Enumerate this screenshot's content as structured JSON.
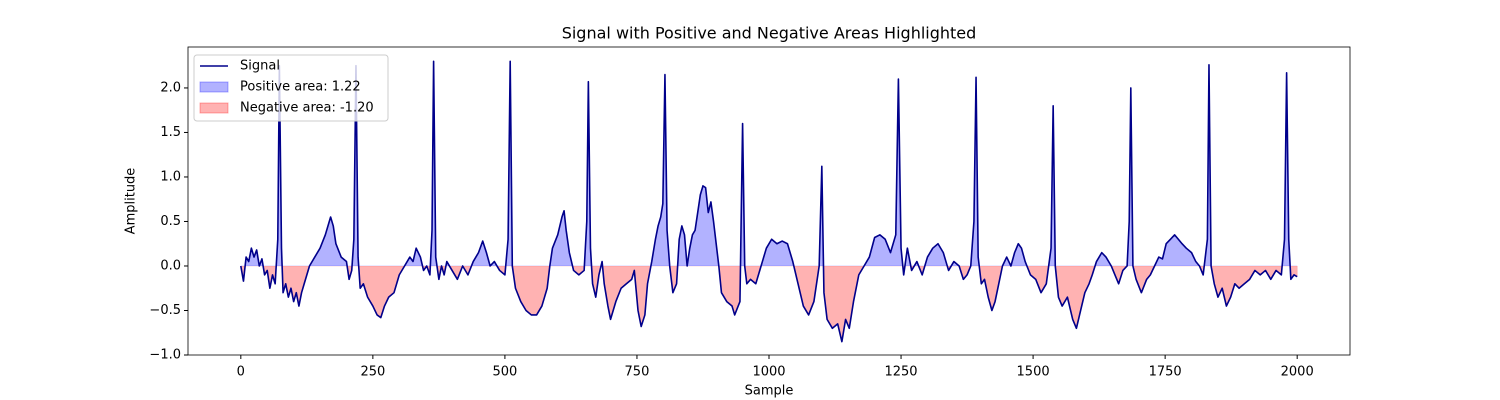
{
  "chart_data": {
    "type": "line",
    "title": "Signal with Positive and Negative Areas Highlighted",
    "x_label": "Sample",
    "y_label": "Amplitude",
    "xlim": [
      -100,
      2100
    ],
    "ylim": [
      -1,
      2.46
    ],
    "xticks": [
      0,
      250,
      500,
      750,
      1000,
      1250,
      1500,
      1750,
      2000
    ],
    "yticks": [
      {
        "value": -1,
        "label": "−1.0"
      },
      {
        "value": -0.5,
        "label": "−0.5"
      },
      {
        "value": 0,
        "label": "0.0"
      },
      0.5,
      {
        "value": 1,
        "label": "1.0"
      },
      1.5,
      {
        "value": 2,
        "label": "2.0"
      }
    ],
    "legend": "upper left",
    "series": [
      {
        "name": "Signal",
        "color": "#00008b",
        "x": [
          0,
          5,
          10,
          15,
          20,
          25,
          30,
          35,
          40,
          45,
          50,
          55,
          60,
          65,
          70,
          73,
          77,
          80,
          85,
          90,
          95,
          100,
          105,
          110,
          115,
          120,
          130,
          140,
          150,
          160,
          170,
          175,
          180,
          190,
          200,
          205,
          210,
          214,
          218,
          222,
          226,
          232,
          240,
          250,
          258,
          265,
          272,
          280,
          290,
          300,
          310,
          320,
          326,
          332,
          340,
          346,
          352,
          358,
          362,
          365,
          369,
          375,
          380,
          385,
          390,
          400,
          410,
          420,
          430,
          440,
          450,
          458,
          465,
          472,
          480,
          490,
          500,
          506,
          510,
          514,
          520,
          530,
          540,
          550,
          560,
          570,
          580,
          585,
          590,
          600,
          608,
          612,
          616,
          622,
          630,
          640,
          650,
          655,
          658,
          662,
          666,
          672,
          678,
          684,
          688,
          695,
          700,
          710,
          720,
          730,
          740,
          745,
          752,
          758,
          765,
          770,
          778,
          785,
          790,
          795,
          799,
          803,
          807,
          812,
          818,
          825,
          830,
          835,
          840,
          845,
          850,
          855,
          860,
          865,
          870,
          875,
          880,
          885,
          890,
          895,
          900,
          905,
          910,
          920,
          930,
          935,
          945,
          950,
          954,
          958,
          965,
          975,
          985,
          995,
          1005,
          1015,
          1025,
          1035,
          1045,
          1055,
          1065,
          1075,
          1085,
          1095,
          1100,
          1104,
          1110,
          1120,
          1130,
          1138,
          1145,
          1152,
          1160,
          1170,
          1180,
          1190,
          1200,
          1210,
          1220,
          1230,
          1240,
          1245,
          1250,
          1255,
          1262,
          1270,
          1280,
          1290,
          1300,
          1310,
          1320,
          1330,
          1340,
          1350,
          1360,
          1368,
          1375,
          1382,
          1388,
          1392,
          1396,
          1402,
          1408,
          1415,
          1422,
          1428,
          1435,
          1442,
          1450,
          1458,
          1465,
          1472,
          1478,
          1485,
          1495,
          1505,
          1515,
          1525,
          1534,
          1538,
          1542,
          1548,
          1555,
          1565,
          1575,
          1582,
          1590,
          1598,
          1606,
          1612,
          1620,
          1630,
          1638,
          1648,
          1655,
          1662,
          1670,
          1678,
          1682,
          1685,
          1689,
          1695,
          1705,
          1715,
          1722,
          1730,
          1738,
          1745,
          1752,
          1760,
          1768,
          1775,
          1782,
          1790,
          1800,
          1808,
          1815,
          1822,
          1830,
          1833,
          1837,
          1843,
          1850,
          1858,
          1866,
          1874,
          1882,
          1890,
          1900,
          1910,
          1920,
          1930,
          1940,
          1950,
          1960,
          1970,
          1976,
          1980,
          1984,
          1988,
          1994,
          2000
        ],
        "values": [
          0,
          -0.17,
          0.1,
          0.05,
          0.2,
          0.1,
          0.18,
          0,
          0.08,
          -0.1,
          -0.05,
          -0.25,
          -0.1,
          -0.2,
          0.3,
          2.25,
          0.2,
          -0.3,
          -0.2,
          -0.35,
          -0.25,
          -0.4,
          -0.3,
          -0.45,
          -0.3,
          -0.2,
          0,
          0.1,
          0.2,
          0.35,
          0.55,
          0.45,
          0.25,
          0.1,
          0.05,
          -0.15,
          -0.05,
          0.3,
          2.25,
          0.1,
          -0.25,
          -0.2,
          -0.35,
          -0.45,
          -0.55,
          -0.58,
          -0.45,
          -0.35,
          -0.3,
          -0.1,
          0,
          0.1,
          0.05,
          0.2,
          0.1,
          -0.05,
          0,
          -0.1,
          0.4,
          2.3,
          0.1,
          -0.15,
          0,
          -0.1,
          0.05,
          -0.05,
          -0.15,
          0,
          -0.1,
          0.05,
          0.15,
          0.28,
          0.15,
          0,
          0.05,
          -0.05,
          -0.1,
          0.3,
          2.3,
          0,
          -0.25,
          -0.4,
          -0.5,
          -0.55,
          -0.55,
          -0.45,
          -0.25,
          0,
          0.2,
          0.35,
          0.55,
          0.62,
          0.4,
          0.15,
          -0.05,
          -0.1,
          -0.05,
          0.5,
          2.07,
          0.2,
          -0.2,
          -0.35,
          -0.1,
          0.05,
          -0.2,
          -0.45,
          -0.6,
          -0.4,
          -0.25,
          -0.2,
          -0.15,
          -0.05,
          -0.5,
          -0.68,
          -0.55,
          -0.2,
          0.05,
          0.3,
          0.45,
          0.55,
          0.7,
          2.15,
          0.4,
          0,
          -0.3,
          -0.2,
          0.3,
          0.45,
          0.35,
          0,
          0.2,
          0.35,
          0.4,
          0.6,
          0.8,
          0.9,
          0.88,
          0.6,
          0.72,
          0.5,
          0.25,
          0,
          -0.3,
          -0.4,
          -0.45,
          -0.55,
          -0.4,
          1.6,
          0,
          -0.2,
          -0.15,
          -0.2,
          0,
          0.2,
          0.3,
          0.25,
          0.28,
          0.25,
          0.05,
          -0.2,
          -0.45,
          -0.55,
          -0.4,
          0,
          1.12,
          -0.3,
          -0.6,
          -0.7,
          -0.65,
          -0.85,
          -0.6,
          -0.7,
          -0.4,
          -0.1,
          0,
          0.1,
          0.32,
          0.35,
          0.3,
          0.15,
          0.35,
          2.1,
          0.2,
          -0.1,
          0.2,
          -0.05,
          0.05,
          -0.1,
          0.1,
          0.2,
          0.25,
          0.15,
          -0.05,
          0.05,
          0,
          -0.15,
          -0.1,
          0,
          0.5,
          2.12,
          0.1,
          -0.2,
          -0.15,
          -0.35,
          -0.5,
          -0.4,
          -0.2,
          0,
          0.1,
          0,
          0.15,
          0.25,
          0.2,
          0.05,
          -0.1,
          -0.15,
          -0.3,
          -0.2,
          0.2,
          1.8,
          0,
          -0.35,
          -0.45,
          -0.35,
          -0.6,
          -0.7,
          -0.5,
          -0.3,
          -0.2,
          -0.1,
          0.05,
          0.15,
          0.1,
          0,
          -0.1,
          -0.2,
          -0.05,
          0,
          0.5,
          2,
          0,
          -0.15,
          -0.3,
          -0.15,
          -0.1,
          0,
          0.1,
          0.08,
          0.25,
          0.3,
          0.35,
          0.3,
          0.25,
          0.2,
          0.15,
          0.05,
          0,
          -0.1,
          0.3,
          2.26,
          0,
          -0.2,
          -0.35,
          -0.25,
          -0.45,
          -0.35,
          -0.2,
          -0.25,
          -0.2,
          -0.15,
          -0.05,
          -0.1,
          -0.05,
          -0.15,
          -0.05,
          -0.1,
          0.3,
          2.17,
          0.3,
          -0.15,
          -0.1,
          -0.12
        ]
      }
    ],
    "fills": [
      {
        "name": "Positive area: 1.22",
        "color": "#0000ff",
        "where": "positive"
      },
      {
        "name": "Negative area: -1.20",
        "color": "#ff0000",
        "where": "negative"
      }
    ]
  }
}
